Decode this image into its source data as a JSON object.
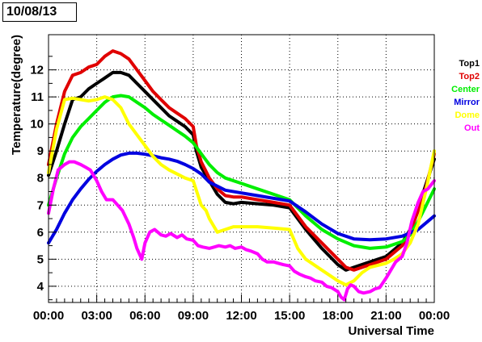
{
  "date_label": "10/08/13",
  "chart_data": {
    "type": "scatter",
    "title": "",
    "xlabel": "Universal Time",
    "ylabel": "Temperature(degree)",
    "xlim": [
      0,
      24
    ],
    "ylim": [
      3.4,
      13.3
    ],
    "grid": true,
    "legend_placement": "right",
    "x_ticks": [
      {
        "value": 0,
        "label": "00:00"
      },
      {
        "value": 3,
        "label": "03:00"
      },
      {
        "value": 6,
        "label": "06:00"
      },
      {
        "value": 9,
        "label": "09:00"
      },
      {
        "value": 12,
        "label": "12:00"
      },
      {
        "value": 15,
        "label": "15:00"
      },
      {
        "value": 18,
        "label": "18:00"
      },
      {
        "value": 21,
        "label": "21:00"
      },
      {
        "value": 24,
        "label": "00:00"
      }
    ],
    "y_ticks": [
      4,
      5,
      6,
      7,
      8,
      9,
      10,
      11,
      12
    ],
    "series": [
      {
        "name": "Top1",
        "color": "#000000",
        "x": [
          0,
          0.5,
          1,
          1.5,
          2,
          2.5,
          3,
          3.5,
          4,
          4.5,
          5,
          5.5,
          6,
          6.5,
          7,
          7.5,
          8,
          8.5,
          9,
          9.2,
          9.5,
          10,
          10.5,
          11,
          11.5,
          12,
          13,
          14,
          15,
          15.5,
          16,
          17,
          18,
          18.5,
          19,
          20,
          21,
          22,
          22.5,
          23,
          23.5,
          24
        ],
        "y": [
          8.1,
          9.0,
          10.0,
          10.9,
          11.0,
          11.3,
          11.5,
          11.7,
          11.9,
          11.9,
          11.8,
          11.5,
          11.2,
          10.9,
          10.6,
          10.3,
          10.1,
          9.9,
          9.6,
          9.0,
          8.4,
          7.9,
          7.4,
          7.1,
          7.05,
          7.1,
          7.05,
          7.0,
          6.9,
          6.5,
          6.1,
          5.4,
          4.8,
          4.6,
          4.7,
          4.9,
          5.1,
          5.6,
          6.1,
          6.9,
          7.8,
          8.7
        ]
      },
      {
        "name": "Top2",
        "color": "#e00000",
        "x": [
          0,
          0.5,
          1,
          1.5,
          2,
          2.5,
          3,
          3.5,
          4,
          4.5,
          5,
          5.5,
          6,
          6.5,
          7,
          7.5,
          8,
          8.5,
          9,
          9.2,
          9.5,
          10,
          10.5,
          11,
          11.5,
          12,
          13,
          14,
          15,
          15.5,
          16,
          17,
          18,
          18.5,
          19,
          20,
          21,
          22,
          22.5,
          23,
          23.5,
          24
        ],
        "y": [
          8.5,
          10.0,
          11.2,
          11.8,
          11.9,
          12.1,
          12.2,
          12.5,
          12.7,
          12.6,
          12.4,
          12.0,
          11.6,
          11.2,
          10.9,
          10.6,
          10.4,
          10.2,
          9.9,
          9.2,
          8.6,
          8.0,
          7.6,
          7.35,
          7.3,
          7.3,
          7.2,
          7.1,
          7.0,
          6.6,
          6.2,
          5.6,
          5.0,
          4.7,
          4.6,
          4.8,
          5.0,
          5.5,
          6.0,
          6.8,
          7.7,
          8.9
        ]
      },
      {
        "name": "Center",
        "color": "#00ee00",
        "x": [
          0,
          0.5,
          1,
          1.5,
          2,
          2.5,
          3,
          3.5,
          4,
          4.5,
          5,
          5.5,
          6,
          6.5,
          7,
          7.5,
          8,
          8.5,
          9,
          9.5,
          10,
          10.5,
          11,
          12,
          13,
          14,
          15,
          16,
          17,
          18,
          19,
          20,
          21,
          22,
          22.5,
          23,
          23.5,
          24
        ],
        "y": [
          7.0,
          8.0,
          8.9,
          9.5,
          9.9,
          10.2,
          10.5,
          10.8,
          11.0,
          11.05,
          11.0,
          10.8,
          10.6,
          10.35,
          10.15,
          9.95,
          9.75,
          9.55,
          9.3,
          8.9,
          8.5,
          8.2,
          8.0,
          7.8,
          7.6,
          7.4,
          7.2,
          6.6,
          6.1,
          5.75,
          5.5,
          5.4,
          5.45,
          5.65,
          5.9,
          6.4,
          7.0,
          7.6
        ]
      },
      {
        "name": "Mirror",
        "color": "#0000e0",
        "x": [
          0,
          0.5,
          1,
          1.5,
          2,
          2.5,
          3,
          3.5,
          4,
          4.5,
          5,
          5.5,
          6,
          6.5,
          7,
          7.5,
          8,
          8.5,
          9,
          9.5,
          10,
          11,
          12,
          13,
          14,
          15,
          16,
          17,
          18,
          19,
          20,
          21,
          22,
          23,
          24
        ],
        "y": [
          5.6,
          6.1,
          6.7,
          7.2,
          7.6,
          7.95,
          8.25,
          8.5,
          8.7,
          8.85,
          8.92,
          8.92,
          8.88,
          8.82,
          8.75,
          8.7,
          8.62,
          8.5,
          8.35,
          8.15,
          7.85,
          7.55,
          7.45,
          7.35,
          7.25,
          7.15,
          6.75,
          6.3,
          5.95,
          5.75,
          5.72,
          5.75,
          5.85,
          6.1,
          6.6
        ]
      },
      {
        "name": "Dome",
        "color": "#ffff00",
        "x": [
          0,
          0.5,
          1,
          1.5,
          2,
          2.5,
          3,
          3.5,
          4,
          4.5,
          5,
          5.5,
          6,
          6.5,
          7,
          7.5,
          8,
          8.5,
          9,
          9.5,
          9.8,
          10,
          10.5,
          11,
          11.5,
          12,
          13,
          14,
          15,
          15.5,
          16,
          17,
          18,
          18.5,
          19,
          19.5,
          20,
          21,
          21.5,
          22,
          22.5,
          23,
          23.5,
          24
        ],
        "y": [
          8.2,
          9.8,
          10.9,
          10.95,
          10.9,
          10.85,
          10.9,
          11.0,
          10.9,
          10.6,
          10.0,
          9.6,
          9.2,
          8.8,
          8.5,
          8.3,
          8.15,
          8.0,
          7.9,
          7.0,
          6.8,
          6.5,
          6.0,
          6.1,
          6.2,
          6.2,
          6.2,
          6.15,
          6.1,
          5.4,
          5.0,
          4.6,
          4.2,
          4.05,
          4.2,
          4.5,
          4.7,
          4.85,
          5.0,
          5.2,
          5.6,
          6.3,
          7.6,
          9.0
        ]
      },
      {
        "name": "Out",
        "color": "#ff00ff",
        "x": [
          0,
          0.3,
          0.6,
          1,
          1.3,
          1.6,
          2,
          2.3,
          2.6,
          3,
          3.3,
          3.6,
          4,
          4.3,
          4.6,
          5,
          5.3,
          5.5,
          5.8,
          6,
          6.3,
          6.6,
          7,
          7.3,
          7.6,
          8,
          8.3,
          8.6,
          9,
          9.3,
          9.6,
          10,
          10.3,
          10.6,
          11,
          11.3,
          11.6,
          12,
          12.3,
          12.6,
          13,
          13.3,
          13.6,
          14,
          14.3,
          14.6,
          15,
          15.3,
          15.6,
          16,
          16.3,
          16.6,
          17,
          17.3,
          17.6,
          18,
          18.2,
          18.4,
          18.6,
          18.8,
          19,
          19.3,
          19.6,
          20,
          20.3,
          20.6,
          21,
          21.3,
          21.6,
          22,
          22.3,
          22.6,
          23,
          23.3,
          23.6,
          24
        ],
        "y": [
          6.7,
          7.6,
          8.3,
          8.5,
          8.6,
          8.6,
          8.5,
          8.4,
          8.3,
          7.9,
          7.5,
          7.2,
          7.2,
          7.0,
          6.8,
          6.3,
          5.8,
          5.4,
          5.0,
          5.6,
          6.0,
          6.1,
          5.9,
          5.85,
          5.95,
          5.8,
          5.9,
          5.75,
          5.7,
          5.5,
          5.45,
          5.4,
          5.45,
          5.5,
          5.45,
          5.5,
          5.4,
          5.45,
          5.35,
          5.3,
          5.2,
          5.0,
          4.9,
          4.9,
          4.85,
          4.8,
          4.75,
          4.55,
          4.45,
          4.35,
          4.3,
          4.2,
          4.15,
          4.0,
          3.95,
          3.8,
          3.6,
          3.5,
          3.9,
          4.05,
          4.0,
          3.8,
          3.75,
          3.8,
          3.9,
          3.95,
          4.3,
          4.6,
          4.9,
          5.1,
          5.6,
          6.4,
          7.1,
          7.5,
          7.6,
          7.9
        ]
      }
    ]
  }
}
